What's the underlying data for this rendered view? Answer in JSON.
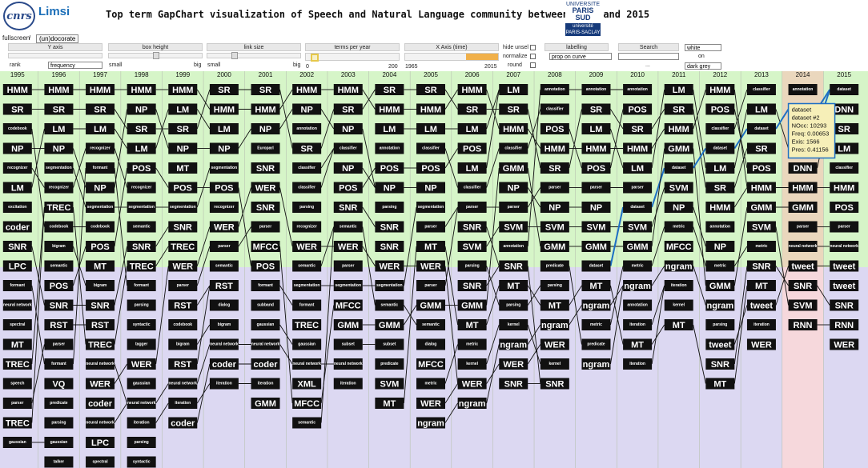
{
  "title": "Top term GapChart visualization of Speech and Natural Language community between 1965 and 2015",
  "logos": {
    "cnrs": "cnrs",
    "limsi": "Limsi",
    "paris_top": "UNIVERSITE",
    "paris_mid": "PARIS SUD",
    "paris_bot": "université PARIS-SACLAY"
  },
  "toolbar": {
    "fullscreen": "fullscreen",
    "sep": "/",
    "undo": "(un)docorate"
  },
  "controls": {
    "yaxis": {
      "label": "Y axis",
      "left": "rank",
      "select": "frequency"
    },
    "boxheight": {
      "label": "box height",
      "min": "small",
      "max": "big"
    },
    "linksize": {
      "label": "link size",
      "min": "small",
      "max": "big"
    },
    "terms": {
      "label": "terms per year",
      "min": "0",
      "max": "200"
    },
    "xaxis": {
      "label": "X Axis (time)",
      "min": "1965",
      "max": "2015"
    },
    "hideunsel": "hide unsel",
    "normalize": "normalize",
    "round": "round",
    "labelling": {
      "label": "labelling",
      "select": "prop on curve"
    },
    "search": {
      "label": "Search",
      "button": "..."
    },
    "theme": {
      "select": "white",
      "on": "on",
      "bg": "dark grey"
    }
  },
  "tooltip": {
    "title": "dataset",
    "year": "dataset #2",
    "nocc": "NOcc: 10293",
    "freq": "Freq: 0.00653",
    "exis": "Exis: 1566",
    "pres": "Pres: 0.41156"
  },
  "colors": {
    "green": "#d6f5c8",
    "purple": "#dcd8f2",
    "pink": "#f6d8dc",
    "tan": "#ead7bd",
    "box": "#111111",
    "highlight": "#1d6fc4"
  },
  "years": [
    "1995",
    "1996",
    "1997",
    "1998",
    "1999",
    "2000",
    "2001",
    "2002",
    "2003",
    "2004",
    "2005",
    "2006",
    "2007",
    "2008",
    "2009",
    "2010",
    "2011",
    "2012",
    "2013",
    "2014",
    "2015"
  ],
  "columns": [
    [
      "HMM",
      "SR",
      "codebook",
      "NP",
      "recognizer",
      "LM",
      "excitation",
      "coder",
      "SNR",
      "LPC",
      "formant",
      "neural network",
      "spectral",
      "MT",
      "TREC",
      "speech",
      "parser",
      "TREC",
      "gaussian"
    ],
    [
      "HMM",
      "SR",
      "LM",
      "NP",
      "segmentation",
      "recognizer",
      "TREC",
      "codebook",
      "bigram",
      "semantic",
      "POS",
      "SNR",
      "RST",
      "parser",
      "formant",
      "VQ",
      "predicate",
      "parsing",
      "gaussian",
      "talker"
    ],
    [
      "HMM",
      "SR",
      "LM",
      "recognizer",
      "formant",
      "NP",
      "segmentation",
      "codebook",
      "POS",
      "MT",
      "bigram",
      "SNR",
      "RST",
      "TREC",
      "neural network",
      "WER",
      "coder",
      "neural network",
      "LPC",
      "spectral"
    ],
    [
      "HMM",
      "NP",
      "SR",
      "LM",
      "POS",
      "recognizer",
      "segmentation",
      "semantic",
      "SNR",
      "TREC",
      "formant",
      "parsing",
      "syntactic",
      "tagger",
      "WER",
      "gaussian",
      "neural network",
      "iteration",
      "parsing",
      "syntactic"
    ],
    [
      "HMM",
      "LM",
      "SR",
      "NP",
      "MT",
      "POS",
      "segmentation",
      "SNR",
      "TREC",
      "WER",
      "parser",
      "RST",
      "codebook",
      "bigram",
      "RST",
      "neural network",
      "iteration",
      "coder"
    ],
    [
      "SR",
      "HMM",
      "LM",
      "NP",
      "segmentation",
      "POS",
      "recognizer",
      "WER",
      "parser",
      "semantic",
      "RST",
      "dialog",
      "bigram",
      "neural network",
      "coder",
      "iteration"
    ],
    [
      "SR",
      "HMM",
      "NP",
      "Europarl",
      "SNR",
      "WER",
      "SNR",
      "parser",
      "MFCC",
      "POS",
      "formant",
      "subband",
      "gaussian",
      "neural network",
      "coder",
      "iteration",
      "GMM"
    ],
    [
      "HMM",
      "NP",
      "annotation",
      "SR",
      "classifier",
      "classifier",
      "parsing",
      "recognizer",
      "WER",
      "semantic",
      "segmentation",
      "formant",
      "TREC",
      "gaussian",
      "neural network",
      "XML",
      "MFCC",
      "semantic"
    ],
    [
      "HMM",
      "SR",
      "NP",
      "classifier",
      "NP",
      "POS",
      "SNR",
      "semantic",
      "WER",
      "parser",
      "segmentation",
      "MFCC",
      "GMM",
      "subset",
      "neural network",
      "iteration"
    ],
    [
      "SR",
      "HMM",
      "LM",
      "annotation",
      "POS",
      "NP",
      "parsing",
      "SNR",
      "SNR",
      "WER",
      "segmentation",
      "semantic",
      "GMM",
      "subset",
      "predicate",
      "SVM",
      "MT"
    ],
    [
      "SR",
      "HMM",
      "LM",
      "classifier",
      "POS",
      "NP",
      "segmentation",
      "parser",
      "MT",
      "WER",
      "parser",
      "GMM",
      "semantic",
      "dialog",
      "MFCC",
      "metric",
      "WER",
      "ngram"
    ],
    [
      "HMM",
      "SR",
      "LM",
      "POS",
      "LM",
      "classifier",
      "parser",
      "SNR",
      "SVM",
      "parsing",
      "SNR",
      "GMM",
      "MT",
      "metric",
      "kernel",
      "WER",
      "ngram"
    ],
    [
      "LM",
      "SR",
      "HMM",
      "classifier",
      "GMM",
      "NP",
      "parser",
      "SVM",
      "annotation",
      "SNR",
      "MT",
      "parsing",
      "kernel",
      "ngram",
      "WER",
      "SNR"
    ],
    [
      "annotation",
      "classifier",
      "POS",
      "HMM",
      "SR",
      "parser",
      "NP",
      "SVM",
      "GMM",
      "predicate",
      "parsing",
      "MT",
      "ngram",
      "WER",
      "kernel",
      "SNR"
    ],
    [
      "annotation",
      "SR",
      "LM",
      "HMM",
      "POS",
      "parser",
      "NP",
      "SVM",
      "GMM",
      "dataset",
      "MT",
      "ngram",
      "metric",
      "predicate",
      "ngram"
    ],
    [
      "annotation",
      "POS",
      "SR",
      "HMM",
      "LM",
      "parser",
      "dataset",
      "SVM",
      "GMM",
      "metric",
      "ngram",
      "annotation",
      "iteration",
      "MT",
      "iteration"
    ],
    [
      "LM",
      "SR",
      "HMM",
      "GMM",
      "dataset",
      "SVM",
      "NP",
      "metric",
      "MFCC",
      "ngram",
      "iteration",
      "kernel",
      "MT"
    ],
    [
      "HMM",
      "POS",
      "classifier",
      "dataset",
      "LM",
      "SR",
      "HMM",
      "annotation",
      "NP",
      "metric",
      "GMM",
      "ngram",
      "parsing",
      "tweet",
      "SNR",
      "MT"
    ],
    [
      "classifier",
      "LM",
      "dataset",
      "SR",
      "POS",
      "HMM",
      "GMM",
      "SVM",
      "metric",
      "SNR",
      "MT",
      "tweet",
      "iteration",
      "WER"
    ],
    [
      "annotation",
      "dataset",
      "dataset",
      "LM",
      "DNN",
      "HMM",
      "GMM",
      "parser",
      "neural network",
      "tweet",
      "SNR",
      "SVM",
      "RNN"
    ],
    [
      "dataset",
      "DNN",
      "SR",
      "LM",
      "classifier",
      "HMM",
      "POS",
      "parser",
      "neural network",
      "tweet",
      "tweet",
      "SNR",
      "RNN",
      "WER"
    ]
  ]
}
